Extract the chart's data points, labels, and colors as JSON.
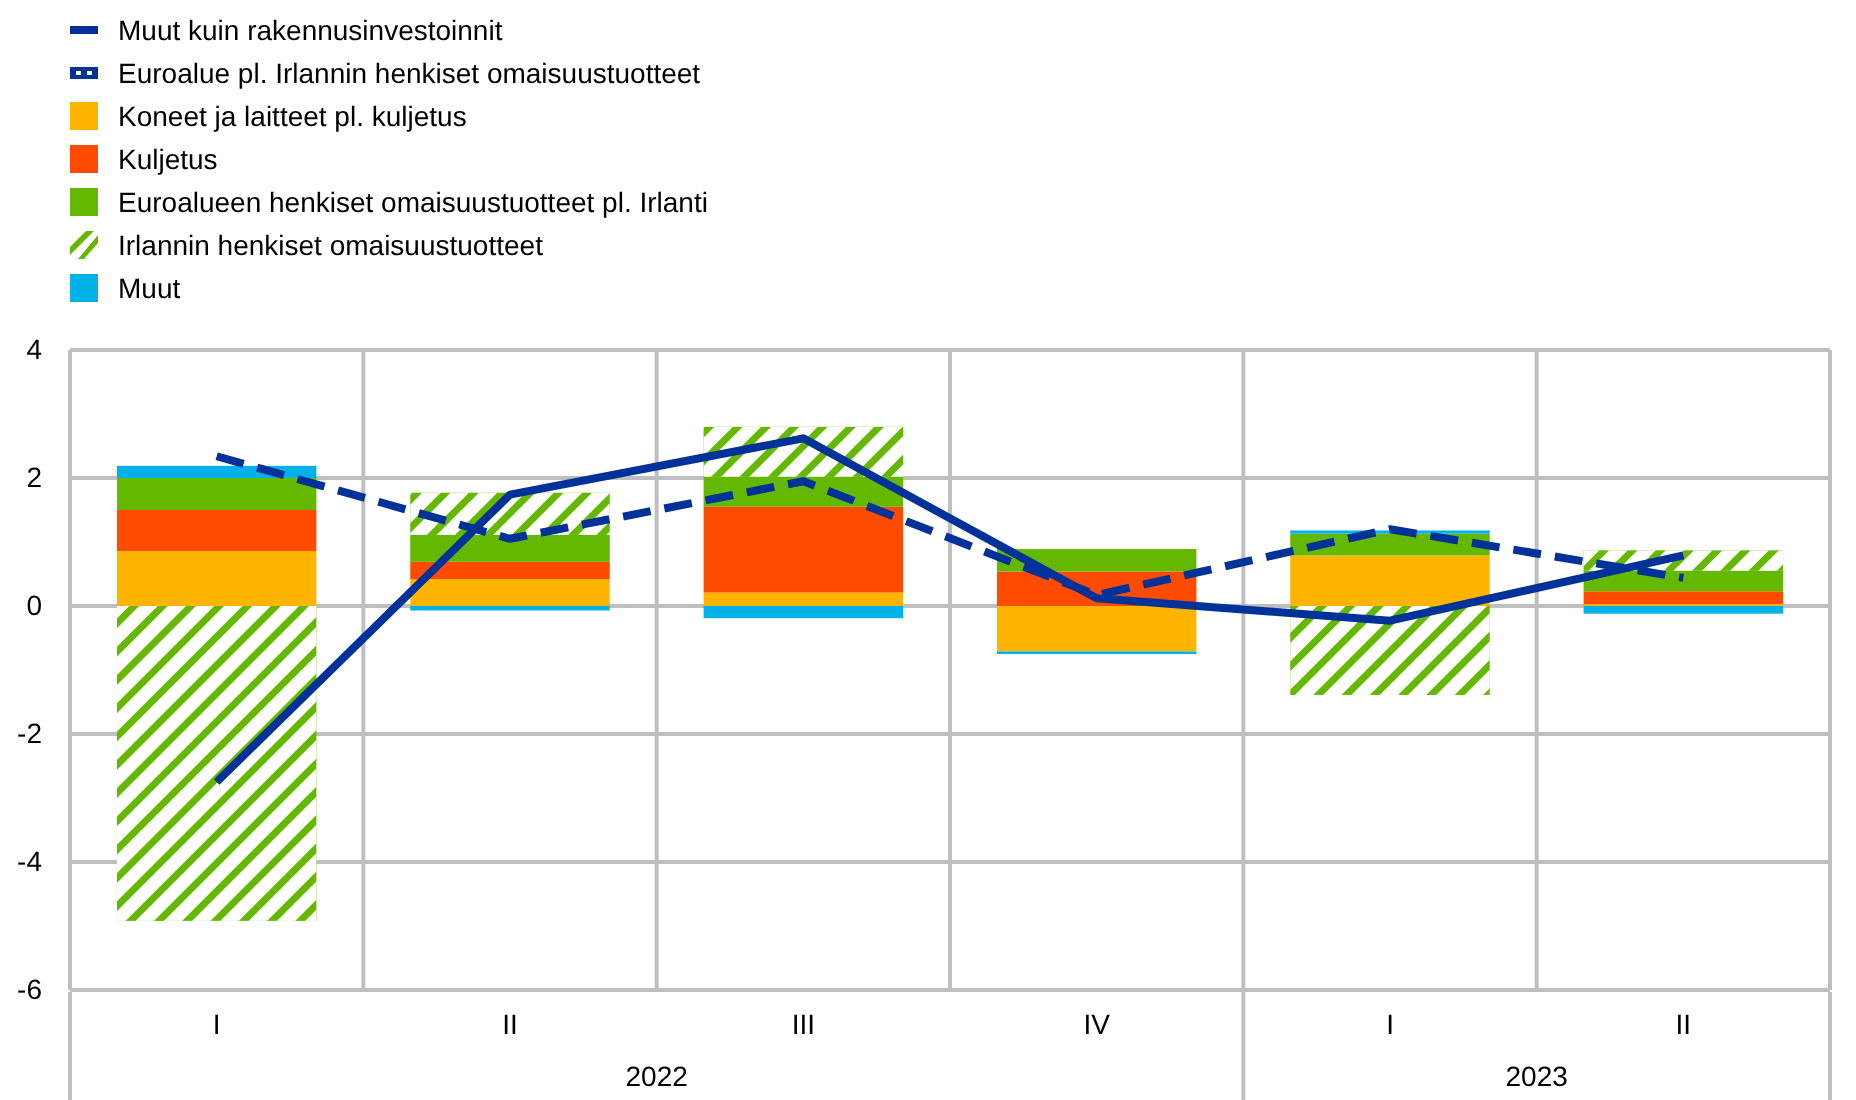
{
  "chart_data": {
    "type": "bar",
    "stacked": true,
    "categories": [
      "I",
      "II",
      "III",
      "IV",
      "I",
      "II"
    ],
    "annotations": [
      "2022",
      "2023"
    ],
    "ylim": [
      -6,
      4
    ],
    "yticks": [
      -6,
      -4,
      -2,
      0,
      2,
      4
    ],
    "grid": true,
    "legend": "top left",
    "series": [
      {
        "name": "Muut kuin rakennusinvestoinnit",
        "type": "line",
        "line_style": "solid",
        "color": "#003299",
        "values": [
          -2.75,
          1.74,
          2.62,
          0.12,
          -0.23,
          0.79
        ]
      },
      {
        "name": "Euroalue pl. Irlannin henkiset omaisuustuotteet",
        "type": "line",
        "line_style": "dashed",
        "color": "#003299",
        "values": [
          2.34,
          1.05,
          1.95,
          0.17,
          1.2,
          0.44
        ]
      },
      {
        "name": "Koneet ja laitteet pl. kuljetus",
        "color": "#ffb400",
        "values": [
          0.86,
          0.42,
          0.21,
          -0.71,
          0.79,
          0.03
        ]
      },
      {
        "name": "Kuljetus",
        "color": "#ff4b00",
        "values": [
          0.64,
          0.27,
          1.34,
          0.54,
          0,
          0.2
        ]
      },
      {
        "name": "Euroalueen henkiset omaisuustuotteet pl. Irlanti",
        "color": "#65b800",
        "values": [
          0.5,
          0.42,
          0.47,
          0.35,
          0.34,
          0.32
        ]
      },
      {
        "name": "Irlannin henkiset omaisuustuotteet",
        "color": "#65b800",
        "values": [
          -4.92,
          0.66,
          0.78,
          0,
          -1.39,
          0.32
        ]
      },
      {
        "name": "Muut",
        "color": "#00b1ea",
        "values": [
          0.19,
          -0.07,
          -0.19,
          -0.04,
          0.05,
          -0.12
        ]
      }
    ]
  }
}
